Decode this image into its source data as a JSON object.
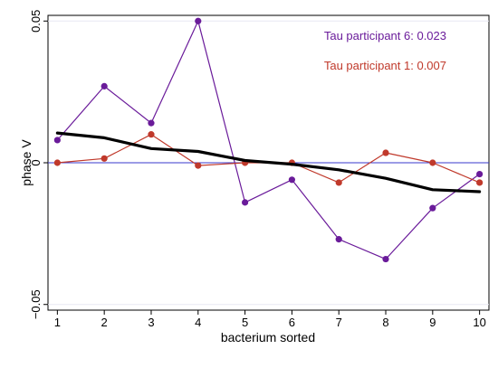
{
  "chart_data": {
    "type": "line",
    "xlabel": "bacterium sorted",
    "ylabel": "phase V",
    "xlim": [
      0.8,
      10.2
    ],
    "ylim": [
      -0.052,
      0.052
    ],
    "x_ticks": [
      1,
      2,
      3,
      4,
      5,
      6,
      7,
      8,
      9,
      10
    ],
    "x_tick_labels": [
      "1",
      "2",
      "3",
      "4",
      "5",
      "6",
      "7",
      "8",
      "9",
      "10"
    ],
    "y_ticks": [
      -0.05,
      0,
      0.05
    ],
    "y_tick_labels": [
      "−0.05",
      "0",
      "0.05"
    ],
    "reference_line": {
      "y": 0,
      "color": "#3a3acc"
    },
    "series": [
      {
        "color": "#6a1b9a",
        "marker": "circle",
        "x": [
          1,
          2,
          3,
          4,
          5,
          6,
          7,
          8,
          9,
          10
        ],
        "values": [
          0.008,
          0.027,
          0.014,
          0.05,
          -0.014,
          -0.006,
          -0.027,
          -0.034,
          -0.016,
          -0.004
        ]
      },
      {
        "color": "#c0392b",
        "marker": "circle",
        "x": [
          1,
          2,
          3,
          4,
          5,
          6,
          7,
          8,
          9,
          10
        ],
        "values": [
          0.0,
          0.0015,
          0.01,
          -0.001,
          0.0,
          0.0,
          -0.007,
          0.0035,
          0.0,
          -0.007
        ]
      },
      {
        "color": "#000000",
        "marker": "none",
        "x": [
          1,
          2,
          3,
          4,
          5,
          6,
          7,
          8,
          9,
          10
        ],
        "values": [
          0.0105,
          0.0088,
          0.005,
          0.004,
          0.0008,
          -0.0005,
          -0.0025,
          -0.0055,
          -0.0095,
          -0.0102
        ]
      }
    ],
    "annotations": [
      {
        "text": "Tau participant 6: 0.023",
        "color": "#6a1b9a"
      },
      {
        "text": "Tau participant 1: 0.007",
        "color": "#c0392b"
      }
    ]
  }
}
